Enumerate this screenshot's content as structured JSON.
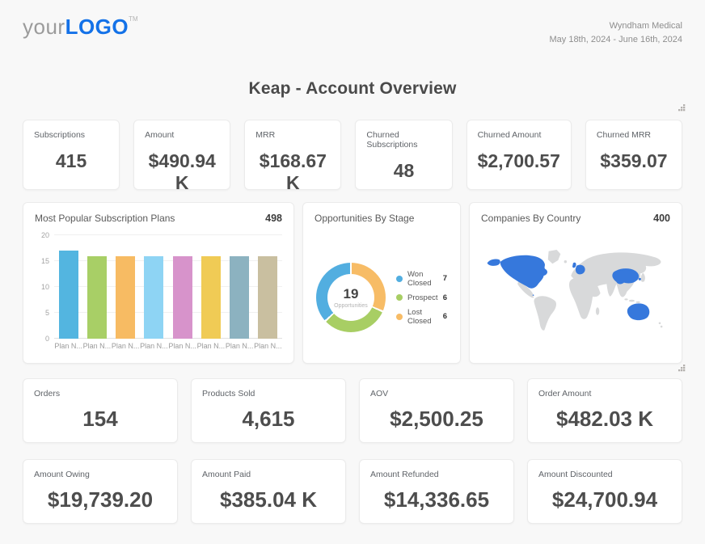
{
  "header": {
    "logo": {
      "prefix": "your",
      "main": "LOGO",
      "tm": "TM"
    },
    "client_name": "Wyndham Medical",
    "date_range": "May 18th, 2024 - June 16th, 2024"
  },
  "page_title": "Keap - Account Overview",
  "kpis": {
    "top": [
      {
        "label": "Subscriptions",
        "value": "415"
      },
      {
        "label": "Amount",
        "value": "$490.94 K"
      },
      {
        "label": "MRR",
        "value": "$168.67 K"
      },
      {
        "label": "Churned Subscriptions",
        "value": "48"
      },
      {
        "label": "Churned Amount",
        "value": "$2,700.57"
      },
      {
        "label": "Churned MRR",
        "value": "$359.07"
      }
    ],
    "middle": [
      {
        "label": "Orders",
        "value": "154"
      },
      {
        "label": "Products Sold",
        "value": "4,615"
      },
      {
        "label": "AOV",
        "value": "$2,500.25"
      },
      {
        "label": "Order Amount",
        "value": "$482.03 K"
      }
    ],
    "bottom": [
      {
        "label": "Amount Owing",
        "value": "$19,739.20"
      },
      {
        "label": "Amount Paid",
        "value": "$385.04 K"
      },
      {
        "label": "Amount Refunded",
        "value": "$14,336.65"
      },
      {
        "label": "Amount Discounted",
        "value": "$24,700.94"
      }
    ]
  },
  "chart_data": [
    {
      "type": "bar",
      "title": "Most Popular Subscription Plans",
      "total_badge": "498",
      "categories": [
        "Plan N...",
        "Plan N...",
        "Plan N...",
        "Plan N...",
        "Plan N...",
        "Plan N...",
        "Plan N...",
        "Plan N..."
      ],
      "values": [
        17,
        16,
        16,
        16,
        16,
        16,
        16,
        16
      ],
      "bar_colors": [
        "#53b5e0",
        "#a8cf66",
        "#f7bb63",
        "#8ed4f4",
        "#d793cb",
        "#f0cb55",
        "#8cb2c0",
        "#c9bfa0"
      ],
      "ylim": [
        0,
        20
      ],
      "yticks": [
        0,
        5,
        10,
        15,
        20
      ],
      "grid": true,
      "xlabel": "",
      "ylabel": "",
      "legend_position": "none"
    },
    {
      "type": "pie",
      "donut": true,
      "title": "Opportunities By Stage",
      "center_value": "19",
      "center_label": "Opportunities",
      "slices": [
        {
          "label": "Won Closed",
          "value": 7,
          "color": "#52aee0"
        },
        {
          "label": "Prospect",
          "value": 6,
          "color": "#a8ce64"
        },
        {
          "label": "Lost Closed",
          "value": 6,
          "color": "#f7bc66"
        }
      ],
      "clockwise_order_from_top": [
        "Lost Closed",
        "Prospect",
        "Won Closed"
      ],
      "legend_position": "right"
    },
    {
      "type": "map",
      "title": "Companies By Country",
      "total_badge": "400",
      "highlighted_regions": [
        "United States",
        "Canada",
        "United Kingdom",
        "Western Europe",
        "China",
        "South Korea",
        "Australia"
      ],
      "highlight_color": "#3678dc",
      "base_color": "#d8d9da"
    }
  ],
  "icons": {
    "resize_handle": "diagonal-grip-dots"
  },
  "colors": {
    "logo_blue": "#1472e8",
    "page_bg": "#f8f8f8",
    "card_bg": "#ffffff",
    "value_text": "#4d4d4d"
  }
}
